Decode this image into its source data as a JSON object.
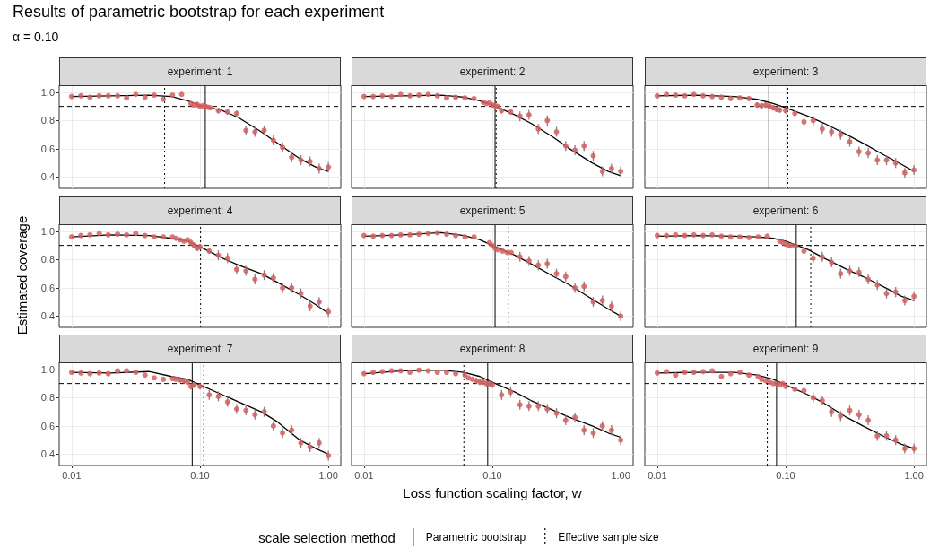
{
  "chart_data": [
    {
      "type": "scatter",
      "title": "experiment: 1",
      "annotations": [
        "Results of parametric bootstrap for each experiment",
        "α = 0.10"
      ],
      "log": "x",
      "grid": true,
      "marker": "circle",
      "tick_labels": "y",
      "xlim": [
        0.008,
        1.25
      ],
      "ylim": [
        0.32,
        1.05
      ],
      "xticks": [
        0.01,
        0.1,
        1
      ],
      "yticks": [
        {
          "value": 0.4,
          "label": "0.4"
        },
        {
          "value": 0.6,
          "label": "0.6"
        },
        {
          "value": 0.8,
          "label": "0.8"
        },
        {
          "value": 1,
          "label": "1.0"
        }
      ],
      "ref_lines": [
        {
          "axis": "y",
          "value": 0.9,
          "line_style": "dashed"
        },
        {
          "axis": "x",
          "value": 0.11,
          "line_style": "solid"
        },
        {
          "axis": "x",
          "value": 0.053,
          "line_style": "dotted"
        }
      ],
      "series": [
        {
          "type": "scatter",
          "color": "#d45f5f",
          "x": [
            0.01,
            0.0118,
            0.0139,
            0.0164,
            0.0193,
            0.0228,
            0.0268,
            0.0316,
            0.0373,
            0.044,
            0.0518,
            0.0611,
            0.072,
            0.085,
            0.09,
            0.095,
            0.1,
            0.105,
            0.11,
            0.115,
            0.12,
            0.139,
            0.164,
            0.193,
            0.228,
            0.268,
            0.316,
            0.373,
            0.44,
            0.518,
            0.611,
            0.72,
            0.848,
            1
          ],
          "values": [
            0.97,
            0.975,
            0.965,
            0.975,
            0.975,
            0.975,
            0.96,
            0.985,
            0.965,
            0.98,
            0.95,
            0.98,
            0.985,
            0.92,
            0.91,
            0.915,
            0.9,
            0.905,
            0.9,
            0.895,
            0.89,
            0.87,
            0.86,
            0.85,
            0.73,
            0.72,
            0.73,
            0.66,
            0.61,
            0.54,
            0.52,
            0.51,
            0.46,
            0.47
          ],
          "errors": [
            null,
            null,
            null,
            null,
            null,
            null,
            null,
            null,
            null,
            null,
            null,
            null,
            null,
            null,
            null,
            null,
            null,
            null,
            null,
            null,
            null,
            0.02,
            0.02,
            0.02,
            0.035,
            0.035,
            0.035,
            0.035,
            0.035,
            0.035,
            0.035,
            0.035,
            0.035,
            0.035
          ]
        },
        {
          "type": "line",
          "color": "#000000",
          "marker": "none",
          "x": [
            0.01,
            0.02,
            0.04,
            0.06,
            0.08,
            0.1,
            0.15,
            0.2,
            0.3,
            0.4,
            0.6,
            0.8,
            1
          ],
          "values": [
            0.97,
            0.975,
            0.98,
            0.97,
            0.94,
            0.91,
            0.87,
            0.82,
            0.72,
            0.64,
            0.53,
            0.47,
            0.44
          ]
        }
      ]
    },
    {
      "type": "scatter",
      "title": "experiment: 2",
      "log": "x",
      "grid": true,
      "marker": "circle",
      "tick_labels": false,
      "xlim": [
        0.008,
        1.25
      ],
      "ylim": [
        0.32,
        1.05
      ],
      "xticks": [
        0.01,
        0.1,
        1
      ],
      "yticks": [
        0.4,
        0.6,
        0.8,
        1
      ],
      "ref_lines": [
        {
          "axis": "y",
          "value": 0.9,
          "line_style": "dashed"
        },
        {
          "axis": "x",
          "value": 0.105,
          "line_style": "solid"
        },
        {
          "axis": "x",
          "value": 0.107,
          "line_style": "dotted"
        }
      ],
      "series": [
        {
          "type": "scatter",
          "color": "#d45f5f",
          "x": [
            0.01,
            0.0118,
            0.0139,
            0.0164,
            0.0193,
            0.0228,
            0.0268,
            0.0316,
            0.0373,
            0.044,
            0.0518,
            0.0611,
            0.072,
            0.085,
            0.09,
            0.095,
            0.1,
            0.105,
            0.11,
            0.118,
            0.139,
            0.164,
            0.193,
            0.228,
            0.268,
            0.316,
            0.373,
            0.44,
            0.518,
            0.611,
            0.72,
            0.848,
            1
          ],
          "values": [
            0.97,
            0.97,
            0.975,
            0.97,
            0.985,
            0.975,
            0.98,
            0.985,
            0.975,
            0.96,
            0.965,
            0.96,
            0.955,
            0.93,
            0.92,
            0.925,
            0.91,
            0.905,
            0.9,
            0.87,
            0.86,
            0.83,
            0.84,
            0.74,
            0.8,
            0.72,
            0.62,
            0.59,
            0.62,
            0.55,
            0.44,
            0.46,
            0.44
          ],
          "errors": [
            null,
            null,
            null,
            null,
            null,
            null,
            null,
            null,
            null,
            null,
            null,
            null,
            null,
            null,
            null,
            null,
            null,
            null,
            null,
            0.02,
            0.02,
            0.035,
            0.035,
            0.035,
            0.035,
            0.035,
            0.035,
            0.035,
            0.035,
            0.035,
            0.035,
            0.035,
            0.035
          ]
        },
        {
          "type": "line",
          "color": "#000000",
          "marker": "none",
          "x": [
            0.01,
            0.02,
            0.04,
            0.06,
            0.08,
            0.1,
            0.15,
            0.2,
            0.3,
            0.4,
            0.6,
            0.8,
            1
          ],
          "values": [
            0.97,
            0.975,
            0.98,
            0.965,
            0.94,
            0.91,
            0.84,
            0.78,
            0.68,
            0.6,
            0.5,
            0.44,
            0.41
          ]
        }
      ]
    },
    {
      "type": "scatter",
      "title": "experiment: 3",
      "log": "x",
      "grid": true,
      "marker": "circle",
      "tick_labels": false,
      "xlim": [
        0.008,
        1.25
      ],
      "ylim": [
        0.32,
        1.05
      ],
      "xticks": [
        0.01,
        0.1,
        1
      ],
      "yticks": [
        0.4,
        0.6,
        0.8,
        1
      ],
      "ref_lines": [
        {
          "axis": "y",
          "value": 0.9,
          "line_style": "dashed"
        },
        {
          "axis": "x",
          "value": 0.074,
          "line_style": "solid"
        },
        {
          "axis": "x",
          "value": 0.104,
          "line_style": "dotted"
        }
      ],
      "series": [
        {
          "type": "scatter",
          "color": "#d45f5f",
          "x": [
            0.01,
            0.0118,
            0.0139,
            0.0164,
            0.0193,
            0.0228,
            0.0268,
            0.0316,
            0.0373,
            0.044,
            0.0518,
            0.06,
            0.065,
            0.07,
            0.075,
            0.08,
            0.085,
            0.09,
            0.1,
            0.118,
            0.139,
            0.164,
            0.193,
            0.228,
            0.268,
            0.316,
            0.373,
            0.44,
            0.518,
            0.611,
            0.72,
            0.848,
            1
          ],
          "values": [
            0.975,
            0.985,
            0.98,
            0.975,
            0.985,
            0.975,
            0.97,
            0.965,
            0.955,
            0.96,
            0.955,
            0.91,
            0.905,
            0.91,
            0.9,
            0.89,
            0.88,
            0.875,
            0.87,
            0.85,
            0.79,
            0.8,
            0.74,
            0.72,
            0.7,
            0.65,
            0.58,
            0.57,
            0.52,
            0.52,
            0.5,
            0.43,
            0.45
          ],
          "errors": [
            null,
            null,
            null,
            null,
            null,
            null,
            null,
            null,
            null,
            null,
            null,
            0.02,
            0.02,
            0.02,
            0.02,
            0.02,
            0.02,
            0.02,
            0.02,
            0.02,
            0.035,
            0.035,
            0.035,
            0.035,
            0.035,
            0.035,
            0.035,
            0.035,
            0.035,
            0.035,
            0.035,
            0.035,
            0.035
          ]
        },
        {
          "type": "line",
          "color": "#000000",
          "marker": "none",
          "x": [
            0.01,
            0.02,
            0.04,
            0.06,
            0.08,
            0.1,
            0.15,
            0.2,
            0.3,
            0.4,
            0.6,
            0.8,
            1
          ],
          "values": [
            0.975,
            0.98,
            0.97,
            0.95,
            0.92,
            0.89,
            0.83,
            0.78,
            0.7,
            0.64,
            0.55,
            0.49,
            0.44
          ]
        }
      ]
    },
    {
      "type": "scatter",
      "title": "experiment: 4",
      "ylabel": "Estimated coverage",
      "log": "x",
      "grid": true,
      "marker": "circle",
      "tick_labels": "y",
      "xlim": [
        0.008,
        1.25
      ],
      "ylim": [
        0.32,
        1.05
      ],
      "xticks": [
        0.01,
        0.1,
        1
      ],
      "yticks": [
        {
          "value": 0.4,
          "label": "0.4"
        },
        {
          "value": 0.6,
          "label": "0.6"
        },
        {
          "value": 0.8,
          "label": "0.8"
        },
        {
          "value": 1,
          "label": "1.0"
        }
      ],
      "ref_lines": [
        {
          "axis": "y",
          "value": 0.9,
          "line_style": "dashed"
        },
        {
          "axis": "x",
          "value": 0.093,
          "line_style": "solid"
        },
        {
          "axis": "x",
          "value": 0.101,
          "line_style": "dotted"
        }
      ],
      "series": [
        {
          "type": "scatter",
          "color": "#d45f5f",
          "x": [
            0.01,
            0.0118,
            0.0139,
            0.0164,
            0.0193,
            0.0228,
            0.0268,
            0.0316,
            0.0373,
            0.044,
            0.0518,
            0.0611,
            0.065,
            0.07,
            0.075,
            0.08,
            0.085,
            0.09,
            0.095,
            0.1,
            0.118,
            0.139,
            0.164,
            0.193,
            0.228,
            0.268,
            0.316,
            0.373,
            0.44,
            0.518,
            0.611,
            0.72,
            0.848,
            1
          ],
          "values": [
            0.96,
            0.97,
            0.975,
            0.985,
            0.975,
            0.98,
            0.975,
            0.985,
            0.97,
            0.96,
            0.96,
            0.96,
            0.95,
            0.94,
            0.93,
            0.94,
            0.92,
            0.9,
            0.88,
            0.89,
            0.86,
            0.83,
            0.81,
            0.73,
            0.72,
            0.66,
            0.69,
            0.67,
            0.6,
            0.6,
            0.56,
            0.47,
            0.5,
            0.43
          ],
          "errors": [
            null,
            null,
            null,
            null,
            null,
            null,
            null,
            null,
            null,
            null,
            null,
            null,
            null,
            null,
            null,
            null,
            0.02,
            0.02,
            0.02,
            0.02,
            0.02,
            0.035,
            0.035,
            0.035,
            0.035,
            0.035,
            0.035,
            0.035,
            0.035,
            0.035,
            0.035,
            0.035,
            0.035,
            0.035
          ]
        },
        {
          "type": "line",
          "color": "#000000",
          "marker": "none",
          "x": [
            0.01,
            0.02,
            0.04,
            0.06,
            0.08,
            0.1,
            0.15,
            0.2,
            0.3,
            0.4,
            0.6,
            0.8,
            1
          ],
          "values": [
            0.96,
            0.975,
            0.97,
            0.95,
            0.93,
            0.89,
            0.81,
            0.76,
            0.7,
            0.64,
            0.55,
            0.48,
            0.42
          ]
        }
      ]
    },
    {
      "type": "scatter",
      "title": "experiment: 5",
      "log": "x",
      "grid": true,
      "marker": "circle",
      "tick_labels": false,
      "xlim": [
        0.008,
        1.25
      ],
      "ylim": [
        0.32,
        1.05
      ],
      "xticks": [
        0.01,
        0.1,
        1
      ],
      "yticks": [
        0.4,
        0.6,
        0.8,
        1
      ],
      "ref_lines": [
        {
          "axis": "y",
          "value": 0.9,
          "line_style": "dashed"
        },
        {
          "axis": "x",
          "value": 0.105,
          "line_style": "solid"
        },
        {
          "axis": "x",
          "value": 0.133,
          "line_style": "dotted"
        }
      ],
      "series": [
        {
          "type": "scatter",
          "color": "#d45f5f",
          "x": [
            0.01,
            0.0118,
            0.0139,
            0.0164,
            0.0193,
            0.0228,
            0.0268,
            0.0316,
            0.0373,
            0.044,
            0.0518,
            0.0611,
            0.072,
            0.095,
            0.1,
            0.105,
            0.11,
            0.12,
            0.13,
            0.14,
            0.164,
            0.193,
            0.228,
            0.268,
            0.316,
            0.373,
            0.44,
            0.518,
            0.611,
            0.72,
            0.848,
            1
          ],
          "values": [
            0.97,
            0.965,
            0.97,
            0.97,
            0.975,
            0.975,
            0.98,
            0.985,
            0.99,
            0.98,
            0.97,
            0.96,
            0.96,
            0.92,
            0.9,
            0.88,
            0.87,
            0.86,
            0.85,
            0.85,
            0.82,
            0.79,
            0.76,
            0.77,
            0.7,
            0.68,
            0.6,
            0.61,
            0.5,
            0.51,
            0.47,
            0.4
          ],
          "errors": [
            null,
            null,
            null,
            null,
            null,
            null,
            null,
            null,
            null,
            null,
            null,
            null,
            null,
            null,
            null,
            null,
            null,
            null,
            null,
            null,
            0.035,
            0.035,
            0.035,
            0.035,
            0.035,
            0.035,
            0.035,
            0.035,
            0.035,
            0.035,
            0.035,
            0.035
          ]
        },
        {
          "type": "line",
          "color": "#000000",
          "marker": "none",
          "x": [
            0.01,
            0.02,
            0.04,
            0.06,
            0.08,
            0.1,
            0.15,
            0.2,
            0.3,
            0.4,
            0.6,
            0.8,
            1
          ],
          "values": [
            0.965,
            0.975,
            0.99,
            0.97,
            0.94,
            0.9,
            0.83,
            0.77,
            0.68,
            0.62,
            0.52,
            0.45,
            0.4
          ]
        }
      ]
    },
    {
      "type": "scatter",
      "title": "experiment: 6",
      "log": "x",
      "grid": true,
      "marker": "circle",
      "tick_labels": false,
      "xlim": [
        0.008,
        1.25
      ],
      "ylim": [
        0.32,
        1.05
      ],
      "xticks": [
        0.01,
        0.1,
        1
      ],
      "yticks": [
        0.4,
        0.6,
        0.8,
        1
      ],
      "ref_lines": [
        {
          "axis": "y",
          "value": 0.9,
          "line_style": "dashed"
        },
        {
          "axis": "x",
          "value": 0.121,
          "line_style": "solid"
        },
        {
          "axis": "x",
          "value": 0.157,
          "line_style": "dotted"
        }
      ],
      "series": [
        {
          "type": "scatter",
          "color": "#d45f5f",
          "x": [
            0.01,
            0.0118,
            0.0139,
            0.0164,
            0.0193,
            0.0228,
            0.0268,
            0.0316,
            0.0373,
            0.044,
            0.0518,
            0.0611,
            0.072,
            0.09,
            0.095,
            0.1,
            0.105,
            0.11,
            0.12,
            0.139,
            0.164,
            0.193,
            0.228,
            0.268,
            0.316,
            0.373,
            0.44,
            0.518,
            0.611,
            0.72,
            0.848,
            1
          ],
          "values": [
            0.97,
            0.97,
            0.975,
            0.97,
            0.975,
            0.97,
            0.975,
            0.965,
            0.96,
            0.96,
            0.955,
            0.96,
            0.965,
            0.93,
            0.92,
            0.91,
            0.9,
            0.9,
            0.895,
            0.86,
            0.81,
            0.82,
            0.78,
            0.7,
            0.72,
            0.71,
            0.66,
            0.62,
            0.56,
            0.57,
            0.51,
            0.54
          ],
          "errors": [
            null,
            null,
            null,
            null,
            null,
            null,
            null,
            null,
            null,
            null,
            null,
            null,
            null,
            null,
            null,
            null,
            null,
            null,
            null,
            0.02,
            0.035,
            0.035,
            0.035,
            0.035,
            0.035,
            0.035,
            0.035,
            0.035,
            0.035,
            0.035,
            0.035,
            0.035
          ]
        },
        {
          "type": "line",
          "color": "#000000",
          "marker": "none",
          "x": [
            0.01,
            0.02,
            0.04,
            0.06,
            0.08,
            0.1,
            0.15,
            0.2,
            0.3,
            0.4,
            0.6,
            0.8,
            1
          ],
          "values": [
            0.965,
            0.97,
            0.965,
            0.96,
            0.95,
            0.93,
            0.87,
            0.81,
            0.73,
            0.68,
            0.6,
            0.54,
            0.51
          ]
        }
      ]
    },
    {
      "type": "scatter",
      "title": "experiment: 7",
      "log": "x",
      "grid": true,
      "marker": "circle",
      "xlim": [
        0.008,
        1.25
      ],
      "ylim": [
        0.32,
        1.05
      ],
      "xticks": [
        {
          "value": 0.01,
          "label": "0.01"
        },
        {
          "value": 0.1,
          "label": "0.10"
        },
        {
          "value": 1,
          "label": "1.00"
        }
      ],
      "yticks": [
        {
          "value": 0.4,
          "label": "0.4"
        },
        {
          "value": 0.6,
          "label": "0.6"
        },
        {
          "value": 0.8,
          "label": "0.8"
        },
        {
          "value": 1,
          "label": "1.0"
        }
      ],
      "ref_lines": [
        {
          "axis": "y",
          "value": 0.9,
          "line_style": "dashed"
        },
        {
          "axis": "x",
          "value": 0.087,
          "line_style": "solid"
        },
        {
          "axis": "x",
          "value": 0.107,
          "line_style": "dotted"
        }
      ],
      "series": [
        {
          "type": "scatter",
          "color": "#d45f5f",
          "x": [
            0.01,
            0.0118,
            0.0139,
            0.0164,
            0.0193,
            0.0228,
            0.0268,
            0.0316,
            0.0373,
            0.044,
            0.0518,
            0.0611,
            0.065,
            0.07,
            0.075,
            0.08,
            0.085,
            0.09,
            0.1,
            0.118,
            0.139,
            0.164,
            0.193,
            0.228,
            0.268,
            0.316,
            0.373,
            0.44,
            0.518,
            0.611,
            0.72,
            0.848,
            1
          ],
          "values": [
            0.98,
            0.975,
            0.97,
            0.975,
            0.97,
            0.99,
            0.99,
            0.98,
            0.96,
            0.94,
            0.93,
            0.935,
            0.93,
            0.925,
            0.92,
            0.91,
            0.88,
            0.89,
            0.88,
            0.82,
            0.81,
            0.77,
            0.72,
            0.71,
            0.68,
            0.7,
            0.6,
            0.55,
            0.57,
            0.48,
            0.45,
            0.48,
            0.39
          ],
          "errors": [
            null,
            null,
            null,
            null,
            null,
            null,
            null,
            null,
            null,
            null,
            null,
            null,
            null,
            0.02,
            0.02,
            0.02,
            0.02,
            0.02,
            0.02,
            0.035,
            0.035,
            0.035,
            0.035,
            0.035,
            0.035,
            0.035,
            0.035,
            0.035,
            0.035,
            0.035,
            0.035,
            0.035,
            0.035
          ]
        },
        {
          "type": "line",
          "color": "#000000",
          "marker": "none",
          "x": [
            0.01,
            0.02,
            0.04,
            0.06,
            0.08,
            0.1,
            0.15,
            0.2,
            0.3,
            0.4,
            0.6,
            0.8,
            1
          ],
          "values": [
            0.98,
            0.975,
            0.985,
            0.95,
            0.93,
            0.89,
            0.82,
            0.77,
            0.7,
            0.63,
            0.5,
            0.44,
            0.4
          ]
        }
      ]
    },
    {
      "type": "scatter",
      "title": "experiment: 8",
      "xlabel": "Loss function scaling factor, w",
      "legend_title": "scale selection method",
      "legend": "bottom",
      "log": "x",
      "grid": true,
      "marker": "circle",
      "tick_labels": "x",
      "xlim": [
        0.008,
        1.25
      ],
      "ylim": [
        0.32,
        1.05
      ],
      "xticks": [
        {
          "value": 0.01,
          "label": "0.01"
        },
        {
          "value": 0.1,
          "label": "0.10"
        },
        {
          "value": 1,
          "label": "1.00"
        }
      ],
      "yticks": [
        0.4,
        0.6,
        0.8,
        1
      ],
      "ref_lines": [
        {
          "axis": "y",
          "value": 0.9,
          "line_style": "dashed"
        },
        {
          "axis": "x",
          "value": 0.092,
          "line_style": "solid",
          "label": "Parametric bootstrap"
        },
        {
          "axis": "x",
          "value": 0.06,
          "line_style": "dotted",
          "label": "Effective sample size"
        }
      ],
      "series": [
        {
          "type": "scatter",
          "color": "#d45f5f",
          "x": [
            0.01,
            0.0118,
            0.0139,
            0.0164,
            0.0193,
            0.0228,
            0.0268,
            0.0316,
            0.0373,
            0.044,
            0.0518,
            0.0611,
            0.065,
            0.07,
            0.075,
            0.08,
            0.085,
            0.09,
            0.095,
            0.1,
            0.118,
            0.139,
            0.164,
            0.193,
            0.228,
            0.268,
            0.316,
            0.373,
            0.44,
            0.518,
            0.611,
            0.72,
            0.848,
            1
          ],
          "values": [
            0.97,
            0.98,
            0.985,
            0.99,
            0.99,
            0.98,
            0.995,
            0.99,
            0.98,
            0.98,
            0.97,
            0.96,
            0.94,
            0.93,
            0.92,
            0.91,
            0.91,
            0.9,
            0.9,
            0.89,
            0.82,
            0.84,
            0.75,
            0.74,
            0.74,
            0.72,
            0.69,
            0.64,
            0.66,
            0.57,
            0.55,
            0.6,
            0.57,
            0.5
          ],
          "errors": [
            null,
            null,
            null,
            null,
            null,
            null,
            null,
            null,
            null,
            null,
            null,
            null,
            null,
            null,
            0.02,
            0.02,
            0.02,
            0.02,
            0.02,
            0.02,
            0.035,
            0.035,
            0.035,
            0.035,
            0.035,
            0.035,
            0.035,
            0.035,
            0.035,
            0.035,
            0.035,
            0.035,
            0.035,
            0.035
          ]
        },
        {
          "type": "line",
          "color": "#000000",
          "marker": "none",
          "x": [
            0.01,
            0.02,
            0.04,
            0.06,
            0.08,
            0.1,
            0.15,
            0.2,
            0.3,
            0.4,
            0.6,
            0.8,
            1
          ],
          "values": [
            0.97,
            0.99,
            0.995,
            0.98,
            0.95,
            0.91,
            0.84,
            0.78,
            0.71,
            0.66,
            0.6,
            0.55,
            0.52
          ]
        }
      ]
    },
    {
      "type": "scatter",
      "title": "experiment: 9",
      "log": "x",
      "grid": true,
      "marker": "circle",
      "tick_labels": "x",
      "xlim": [
        0.008,
        1.25
      ],
      "ylim": [
        0.32,
        1.05
      ],
      "xticks": [
        {
          "value": 0.01,
          "label": "0.01"
        },
        {
          "value": 0.1,
          "label": "0.10"
        },
        {
          "value": 1,
          "label": "1.00"
        }
      ],
      "yticks": [
        0.4,
        0.6,
        0.8,
        1
      ],
      "ref_lines": [
        {
          "axis": "y",
          "value": 0.9,
          "line_style": "dashed"
        },
        {
          "axis": "x",
          "value": 0.085,
          "line_style": "solid"
        },
        {
          "axis": "x",
          "value": 0.072,
          "line_style": "dotted"
        }
      ],
      "series": [
        {
          "type": "scatter",
          "color": "#d45f5f",
          "x": [
            0.01,
            0.0118,
            0.0139,
            0.0164,
            0.0193,
            0.0228,
            0.0268,
            0.0316,
            0.0373,
            0.044,
            0.0518,
            0.0611,
            0.065,
            0.07,
            0.075,
            0.08,
            0.085,
            0.09,
            0.095,
            0.1,
            0.118,
            0.139,
            0.164,
            0.193,
            0.228,
            0.268,
            0.316,
            0.373,
            0.44,
            0.518,
            0.611,
            0.72,
            0.848,
            1
          ],
          "values": [
            0.975,
            0.985,
            0.96,
            0.98,
            0.98,
            0.985,
            0.99,
            0.95,
            0.97,
            0.98,
            0.96,
            0.95,
            0.93,
            0.92,
            0.91,
            0.9,
            0.9,
            0.89,
            0.9,
            0.88,
            0.86,
            0.85,
            0.8,
            0.78,
            0.7,
            0.67,
            0.71,
            0.68,
            0.64,
            0.53,
            0.53,
            0.5,
            0.44,
            0.44
          ],
          "errors": [
            null,
            null,
            null,
            null,
            null,
            null,
            null,
            null,
            null,
            null,
            null,
            null,
            null,
            null,
            null,
            null,
            null,
            null,
            null,
            null,
            null,
            0.02,
            0.035,
            0.035,
            0.035,
            0.035,
            0.035,
            0.035,
            0.035,
            0.035,
            0.035,
            0.035,
            0.035,
            0.035
          ]
        },
        {
          "type": "line",
          "color": "#000000",
          "marker": "none",
          "x": [
            0.01,
            0.02,
            0.04,
            0.06,
            0.08,
            0.1,
            0.15,
            0.2,
            0.3,
            0.4,
            0.6,
            0.8,
            1
          ],
          "values": [
            0.975,
            0.98,
            0.98,
            0.96,
            0.93,
            0.89,
            0.82,
            0.76,
            0.66,
            0.6,
            0.52,
            0.47,
            0.44
          ]
        }
      ]
    }
  ]
}
